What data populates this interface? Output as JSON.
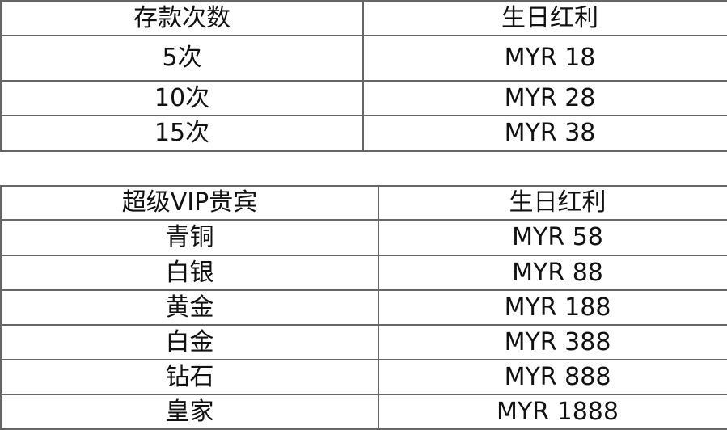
{
  "deposit_table": {
    "headers": [
      "存款次数",
      "生日红利"
    ],
    "rows": [
      [
        "5次",
        "MYR 18"
      ],
      [
        "10次",
        "MYR 28"
      ],
      [
        "15次",
        "MYR 38"
      ]
    ]
  },
  "vip_table": {
    "headers": [
      "超级VIP贵宾",
      "生日红利"
    ],
    "rows": [
      [
        "青铜",
        "MYR 58"
      ],
      [
        "白银",
        "MYR 88"
      ],
      [
        "黄金",
        "MYR 188"
      ],
      [
        "白金",
        "MYR 388"
      ],
      [
        "钻石",
        "MYR 888"
      ],
      [
        "皇家",
        "MYR 1888"
      ]
    ]
  }
}
